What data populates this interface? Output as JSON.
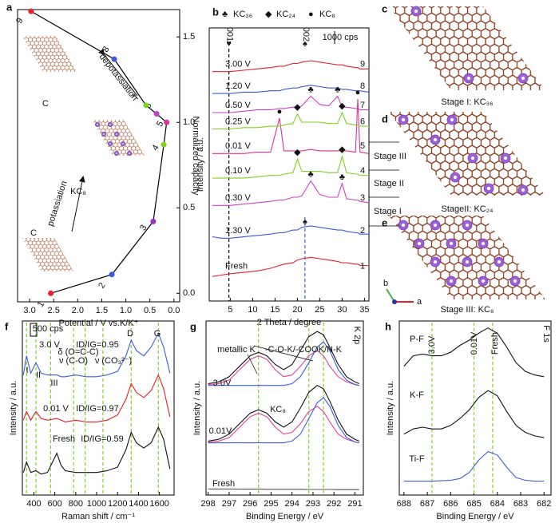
{
  "chart_data": [
    {
      "type": "line",
      "panel": "a",
      "xlabel": "Potential / V vs.K/K⁺",
      "ylabel": "Normalized capacity",
      "yaxis_side": "right",
      "xlim": [
        3.25,
        -0.12
      ],
      "ylim": [
        -0.05,
        1.66
      ],
      "xticks": [
        {
          "value": 3,
          "label": "3.0"
        },
        2.5,
        {
          "value": 2,
          "label": "2.0"
        },
        1.5,
        {
          "value": 1,
          "label": "1.0"
        },
        0.5,
        {
          "value": 0,
          "label": "0.0"
        }
      ],
      "yticks": [
        {
          "value": 0,
          "label": "0.0"
        },
        0.5,
        {
          "value": 1,
          "label": "1.0"
        },
        1.5
      ],
      "x": [
        2.56,
        1.29,
        0.43,
        0.21,
        0.15,
        0.36,
        0.58,
        1.24,
        2.97
      ],
      "series": [
        {
          "color": "#000000",
          "values": [
            0,
            0.11,
            0.42,
            0.87,
            1.0,
            1.05,
            1.1,
            1.37,
            1.65
          ],
          "marker_colors": [
            "#e8202a",
            "#3b5bdb",
            "#9b30c8",
            "#7ed321",
            "#e0309a",
            "#c040d0",
            "#7ed321",
            "#3b5bdb",
            "#e8202a"
          ],
          "point_labels": [
            "1",
            "2",
            "3",
            "4",
            "5",
            "6",
            "7",
            "8",
            "9"
          ]
        }
      ],
      "annotations": [
        "C",
        "KC₈",
        "C",
        "depotassiation",
        "potassiation"
      ]
    },
    {
      "type": "line",
      "panel": "b",
      "xlabel": "2 Theta /  degree",
      "ylabel": "Intensity / a.u.",
      "xlim": [
        0.3,
        36
      ],
      "ylim": [
        0,
        10
      ],
      "xticks": [
        5,
        10,
        15,
        20,
        25,
        30,
        35
      ],
      "x": [
        1,
        3,
        5,
        8,
        11,
        14,
        16,
        17,
        19,
        20,
        21,
        23,
        25,
        27,
        29,
        30,
        31,
        33,
        33.5,
        34,
        36
      ],
      "series": [
        {
          "name": "Fresh",
          "label": "1",
          "color": "#e8202a",
          "values": [
            0.9,
            0.95,
            1.0,
            1.05,
            1.1,
            1.2,
            1.3,
            1.35,
            1.4,
            1.5,
            1.55,
            1.6,
            1.55,
            1.5,
            1.45,
            1.4,
            1.4,
            1.35,
            1.35,
            1.3,
            1.3
          ]
        },
        {
          "name": "1.30 V",
          "label": "2",
          "color": "#3b5bdb",
          "values": [
            2.35,
            2.3,
            2.3,
            2.35,
            2.4,
            2.45,
            2.5,
            2.5,
            2.6,
            2.6,
            2.7,
            2.75,
            2.7,
            2.65,
            2.6,
            2.6,
            2.55,
            2.5,
            2.5,
            2.45,
            2.45
          ]
        },
        {
          "name": "0.30 V",
          "label": "3",
          "color": "#d040c8",
          "values": [
            3.5,
            3.5,
            3.5,
            3.55,
            3.6,
            3.65,
            3.7,
            3.7,
            3.8,
            3.8,
            3.85,
            4.4,
            3.9,
            3.8,
            3.8,
            4.3,
            3.75,
            3.7,
            3.7,
            3.65,
            3.6
          ]
        },
        {
          "name": "0.10 V",
          "label": "4",
          "color": "#7ed321",
          "values": [
            4.5,
            4.5,
            4.5,
            4.5,
            4.55,
            4.6,
            4.6,
            4.65,
            4.7,
            5.2,
            4.75,
            4.75,
            4.75,
            4.7,
            4.7,
            5.3,
            4.7,
            4.65,
            4.65,
            4.6,
            4.6
          ]
        },
        {
          "name": "0.01 V",
          "label": "5",
          "color": "#e0309a",
          "values": [
            5.4,
            5.4,
            5.4,
            5.4,
            5.45,
            5.45,
            6.7,
            5.5,
            5.5,
            5.5,
            5.5,
            5.55,
            5.5,
            5.5,
            5.5,
            5.5,
            5.5,
            5.45,
            7.4,
            5.45,
            5.4
          ]
        },
        {
          "name": "0.25 V",
          "label": "6",
          "color": "#7ed321",
          "values": [
            6.3,
            6.3,
            6.3,
            6.35,
            6.35,
            6.4,
            6.4,
            6.45,
            6.5,
            6.85,
            6.55,
            6.55,
            6.55,
            6.5,
            6.5,
            6.9,
            6.5,
            6.45,
            6.45,
            6.4,
            6.4
          ]
        },
        {
          "name": "0.50 V",
          "label": "7",
          "color": "#d040c8",
          "values": [
            6.9,
            6.9,
            6.9,
            6.95,
            7.0,
            7.0,
            7.05,
            7.05,
            7.1,
            7.1,
            7.15,
            7.5,
            7.2,
            7.15,
            7.5,
            7.1,
            7.1,
            7.05,
            7.05,
            7.0,
            7.0
          ]
        },
        {
          "name": "1.20 V",
          "label": "8",
          "color": "#3b5bdb",
          "values": [
            7.6,
            7.6,
            7.6,
            7.65,
            7.65,
            7.7,
            7.7,
            7.75,
            7.8,
            7.8,
            7.85,
            7.9,
            7.85,
            7.8,
            7.8,
            7.75,
            7.75,
            7.7,
            7.7,
            7.7,
            7.65
          ]
        },
        {
          "name": "3.00 V",
          "label": "9",
          "color": "#e8202a",
          "values": [
            8.4,
            8.4,
            8.4,
            8.45,
            8.5,
            8.55,
            8.6,
            8.6,
            8.7,
            8.7,
            8.75,
            8.8,
            8.75,
            8.7,
            8.65,
            8.65,
            8.6,
            8.55,
            8.55,
            8.5,
            8.5
          ]
        }
      ],
      "phases": [
        {
          "symbol": "♣",
          "label": "KC₃₆"
        },
        {
          "symbol": "◆",
          "label": "KC₂₄"
        },
        {
          "symbol": "●",
          "label": "KC₈"
        }
      ],
      "ref_lines": [
        {
          "value": 4.7,
          "label": "001",
          "symbol": "♥",
          "color": "#000000"
        },
        {
          "value": 21.7,
          "label": "002",
          "symbol": "♠",
          "color": "#3b5bdb"
        }
      ],
      "stages": [
        "Stage III",
        "Stage II",
        "Stage I"
      ],
      "stage_color": "#e8202a",
      "annotations": [
        "1000 cps"
      ]
    },
    {
      "type": "line",
      "panel": "f",
      "xlabel": "Raman shift / cm⁻¹",
      "ylabel": "Intensity / a.u.",
      "xlim": [
        290,
        1740
      ],
      "ylim": [
        0,
        10
      ],
      "xticks": [
        400,
        600,
        800,
        1000,
        1200,
        1400,
        1600
      ],
      "x": [
        300,
        330,
        370,
        420,
        470,
        530,
        620,
        660,
        700,
        800,
        900,
        1000,
        1100,
        1200,
        1280,
        1330,
        1380,
        1450,
        1520,
        1590,
        1640,
        1700
      ],
      "series": [
        {
          "color": "#111111",
          "values": [
            1.3,
            1.9,
            1.3,
            1.4,
            1.2,
            1.3,
            2.4,
            1.7,
            1.4,
            1.3,
            1.3,
            1.3,
            1.4,
            1.6,
            2.6,
            3.6,
            3.0,
            2.7,
            3.0,
            3.9,
            3.2,
            1.5
          ]
        },
        {
          "color": "#e8202a",
          "values": [
            4.3,
            4.8,
            4.3,
            4.8,
            4.4,
            4.3,
            4.4,
            4.3,
            4.2,
            4.3,
            4.2,
            4.2,
            4.3,
            4.6,
            5.5,
            6.4,
            5.9,
            5.6,
            6.0,
            6.9,
            6.1,
            4.5
          ]
        },
        {
          "color": "#3b5bdb",
          "values": [
            6.9,
            8.0,
            7.0,
            7.6,
            7.0,
            6.9,
            6.9,
            6.8,
            6.8,
            6.9,
            6.8,
            6.8,
            6.9,
            7.1,
            8.0,
            8.9,
            8.3,
            8.0,
            8.5,
            9.3,
            8.5,
            7.0
          ]
        }
      ],
      "ref_lines": [
        330,
        420,
        560,
        780,
        890,
        1060,
        1330,
        1590
      ],
      "ref_color": "#7ed321",
      "annotations": [
        "500 cps",
        "3.0 V",
        "0.01 V",
        "Fresh",
        "ID/IG=0.95",
        "ID/IG=0.97",
        "ID/IG=0.59",
        "δ (O=C-C)",
        "ν (C-O)",
        "ν (CO₃²⁻)",
        "I",
        "II",
        "III",
        "D",
        "G"
      ]
    },
    {
      "type": "line",
      "panel": "g",
      "xlabel": "Binding Energy / eV",
      "ylabel": "Intensity / a.u.",
      "xlim": [
        298.1,
        290.6
      ],
      "ylim": [
        0,
        10
      ],
      "xticks": [
        298,
        297,
        296,
        295,
        294,
        293,
        292,
        291
      ],
      "x": [
        298,
        297.5,
        297,
        296.5,
        296,
        295.6,
        295.2,
        294.8,
        294.4,
        294,
        293.6,
        293.2,
        292.8,
        292.5,
        292.2,
        291.8,
        291.4,
        291,
        290.8
      ],
      "series": [
        {
          "color": "#555555",
          "values": [
            0.35,
            0.35,
            0.35,
            0.34,
            0.34,
            0.34,
            0.33,
            0.33,
            0.33,
            0.33,
            0.33,
            0.32,
            0.32,
            0.32,
            0.32,
            0.31,
            0.31,
            0.31,
            0.31
          ]
        },
        {
          "color": "#111111",
          "values": [
            3.1,
            3.2,
            3.5,
            4.1,
            4.7,
            4.9,
            4.7,
            4.2,
            3.9,
            4.2,
            5.0,
            5.9,
            6.3,
            6.1,
            5.4,
            4.3,
            3.5,
            3.2,
            3.1
          ]
        },
        {
          "color": "#e040a0",
          "values": [
            3.05,
            3.1,
            3.3,
            3.9,
            4.5,
            4.7,
            4.5,
            3.9,
            3.5,
            3.6,
            4.1,
            4.8,
            5.1,
            4.8,
            4.2,
            3.5,
            3.2,
            3.05,
            3.0
          ]
        },
        {
          "color": "#3b5bdb",
          "values": [
            3.0,
            3.0,
            3.0,
            3.0,
            3.0,
            3.0,
            3.0,
            3.0,
            3.0,
            3.1,
            3.5,
            4.4,
            5.3,
            5.6,
            5.1,
            4.0,
            3.3,
            3.05,
            3.0
          ]
        },
        {
          "color": "#111111",
          "values": [
            6.4,
            6.5,
            6.8,
            7.4,
            8.0,
            8.2,
            8.0,
            7.5,
            7.2,
            7.5,
            8.3,
            9.1,
            9.4,
            9.2,
            8.5,
            7.5,
            6.8,
            6.5,
            6.4
          ]
        },
        {
          "color": "#e040a0",
          "values": [
            6.35,
            6.4,
            6.6,
            7.2,
            7.8,
            8.0,
            7.8,
            7.2,
            6.8,
            6.9,
            7.4,
            8.0,
            8.3,
            8.0,
            7.4,
            6.8,
            6.5,
            6.35,
            6.3
          ]
        },
        {
          "color": "#3b5bdb",
          "values": [
            6.3,
            6.3,
            6.3,
            6.3,
            6.3,
            6.3,
            6.3,
            6.3,
            6.3,
            6.4,
            6.8,
            7.6,
            8.5,
            8.8,
            8.3,
            7.2,
            6.6,
            6.35,
            6.3
          ]
        }
      ],
      "ref_lines": [
        295.6,
        293.2,
        292.5
      ],
      "ref_color": "#7ed321",
      "annotations": [
        "metallic K",
        "-C-O-K/-COOK/N-K",
        "KC₈",
        "3.0V",
        "0.01V",
        "Fresh",
        "K 2p"
      ]
    },
    {
      "type": "line",
      "panel": "h",
      "xlabel": "Binding Energy / eV",
      "ylabel": "Intensity / a.u.",
      "xlim": [
        688.2,
        681.7
      ],
      "ylim": [
        0,
        10
      ],
      "xticks": [
        688,
        687,
        686,
        685,
        684,
        683,
        682
      ],
      "x": [
        688,
        687.6,
        687.2,
        686.8,
        686.4,
        686,
        685.6,
        685.2,
        684.8,
        684.4,
        684,
        683.6,
        683.2,
        682.8,
        682.4,
        682
      ],
      "series": [
        {
          "color": "#3b5bdb",
          "values": [
            0.8,
            0.8,
            0.8,
            0.8,
            0.82,
            0.85,
            0.95,
            1.3,
            2.0,
            2.5,
            2.3,
            1.6,
            1.0,
            0.85,
            0.8,
            0.8
          ]
        },
        {
          "color": "#111111",
          "values": [
            3.5,
            3.8,
            3.9,
            3.8,
            3.8,
            4.0,
            4.4,
            4.9,
            5.6,
            6.0,
            5.7,
            4.8,
            4.0,
            3.6,
            3.4,
            3.3
          ]
        },
        {
          "color": "#111111",
          "values": [
            7.4,
            8.0,
            8.1,
            8.0,
            8.0,
            8.2,
            8.6,
            8.9,
            9.3,
            9.6,
            9.3,
            8.5,
            7.6,
            7.1,
            6.9,
            6.8
          ]
        }
      ],
      "ref_lines": [
        686.8,
        685.0,
        684.2
      ],
      "ref_color": "#7ed321",
      "annotations": [
        "P-F",
        "K-F",
        "Ti-F",
        "F 1s",
        "3.0V",
        "0.01V",
        "Fresh"
      ]
    }
  ],
  "structures": [
    {
      "panel": "c",
      "caption": "Stage I: KC₃₆"
    },
    {
      "panel": "d",
      "caption": "StageII: KC₂₄"
    },
    {
      "panel": "e",
      "caption": "Stage III: KC₈"
    }
  ],
  "axis_labels": [
    "b",
    "a"
  ]
}
